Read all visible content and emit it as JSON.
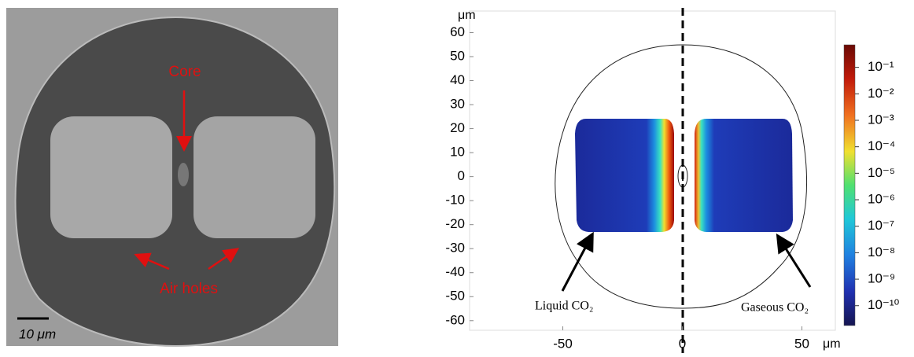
{
  "left_panel": {
    "labels": {
      "core": "Core",
      "air_holes": "Air holes",
      "scale_bar": "10 μm"
    }
  },
  "right_panel": {
    "y_unit": "μm",
    "x_unit": "μm",
    "xlim": [
      -89,
      64
    ],
    "ylim": [
      -64,
      69
    ],
    "xticks": [
      -50,
      0,
      50
    ],
    "yticks": [
      60,
      50,
      40,
      30,
      20,
      10,
      0,
      -10,
      -20,
      -30,
      -40,
      -50,
      -60
    ],
    "colorbar": {
      "clim": [
        -10.75,
        -0.15
      ],
      "ticks": [
        {
          "value": -1,
          "label": "10⁻¹"
        },
        {
          "value": -2,
          "label": "10⁻²"
        },
        {
          "value": -3,
          "label": "10⁻³"
        },
        {
          "value": -4,
          "label": "10⁻⁴"
        },
        {
          "value": -5,
          "label": "10⁻⁵"
        },
        {
          "value": -6,
          "label": "10⁻⁶"
        },
        {
          "value": -7,
          "label": "10⁻⁷"
        },
        {
          "value": -8,
          "label": "10⁻⁸"
        },
        {
          "value": -9,
          "label": "10⁻⁹"
        },
        {
          "value": -10,
          "label": "10⁻¹⁰"
        }
      ]
    },
    "annotations": {
      "liquid": "Liquid CO₂",
      "gaseous": "Gaseous CO₂"
    }
  }
}
